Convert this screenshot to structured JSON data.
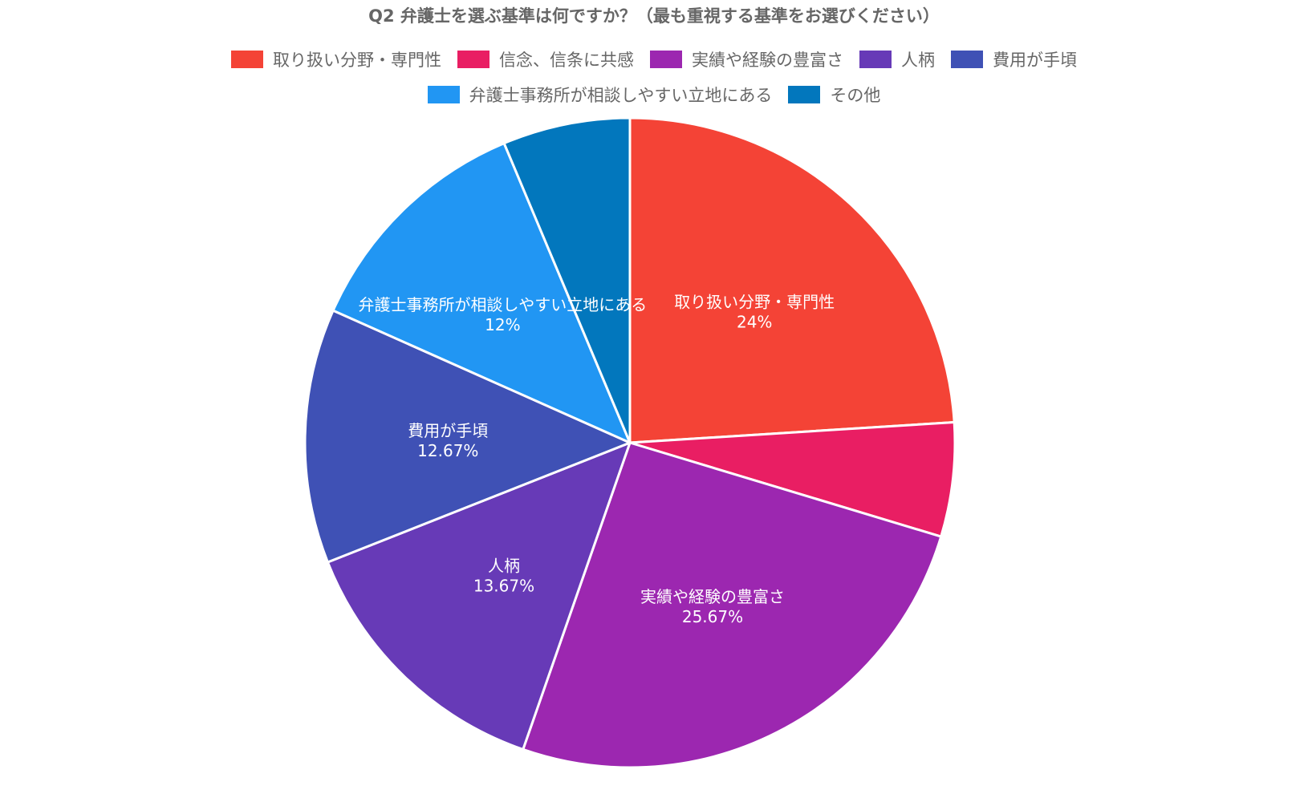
{
  "chart_data": {
    "type": "pie",
    "title": "Q2 弁護士を選ぶ基準は何ですか？（最も重視する基準をお選びください）",
    "categories": [
      "取り扱い分野・専門性",
      "信念、信条に共感",
      "実績や経験の豊富さ",
      "人柄",
      "費用が手頃",
      "弁護士事務所が相談しやすい立地にある",
      "その他"
    ],
    "values": [
      24,
      5.67,
      25.67,
      13.67,
      12.67,
      12,
      6.33
    ],
    "data_labels": [
      {
        "name": "取り扱い分野・専門性",
        "value": "24%"
      },
      {
        "name": "",
        "value": ""
      },
      {
        "name": "実績や経験の豊富さ",
        "value": "25.67%"
      },
      {
        "name": "人柄",
        "value": "13.67%"
      },
      {
        "name": "費用が手頃",
        "value": "12.67%"
      },
      {
        "name": "弁護士事務所が相談しやすい立地にある",
        "value": "12%"
      },
      {
        "name": "",
        "value": ""
      }
    ],
    "colors": [
      "#f44336",
      "#e91e63",
      "#9c27b0",
      "#673ab7",
      "#3f51b5",
      "#2196f3",
      "#0277bd"
    ],
    "legend_position": "top",
    "legend_rows": [
      [
        0,
        1,
        2,
        3,
        4
      ],
      [
        5,
        6
      ]
    ],
    "start": "12 o'clock",
    "direction": "clockwise"
  }
}
